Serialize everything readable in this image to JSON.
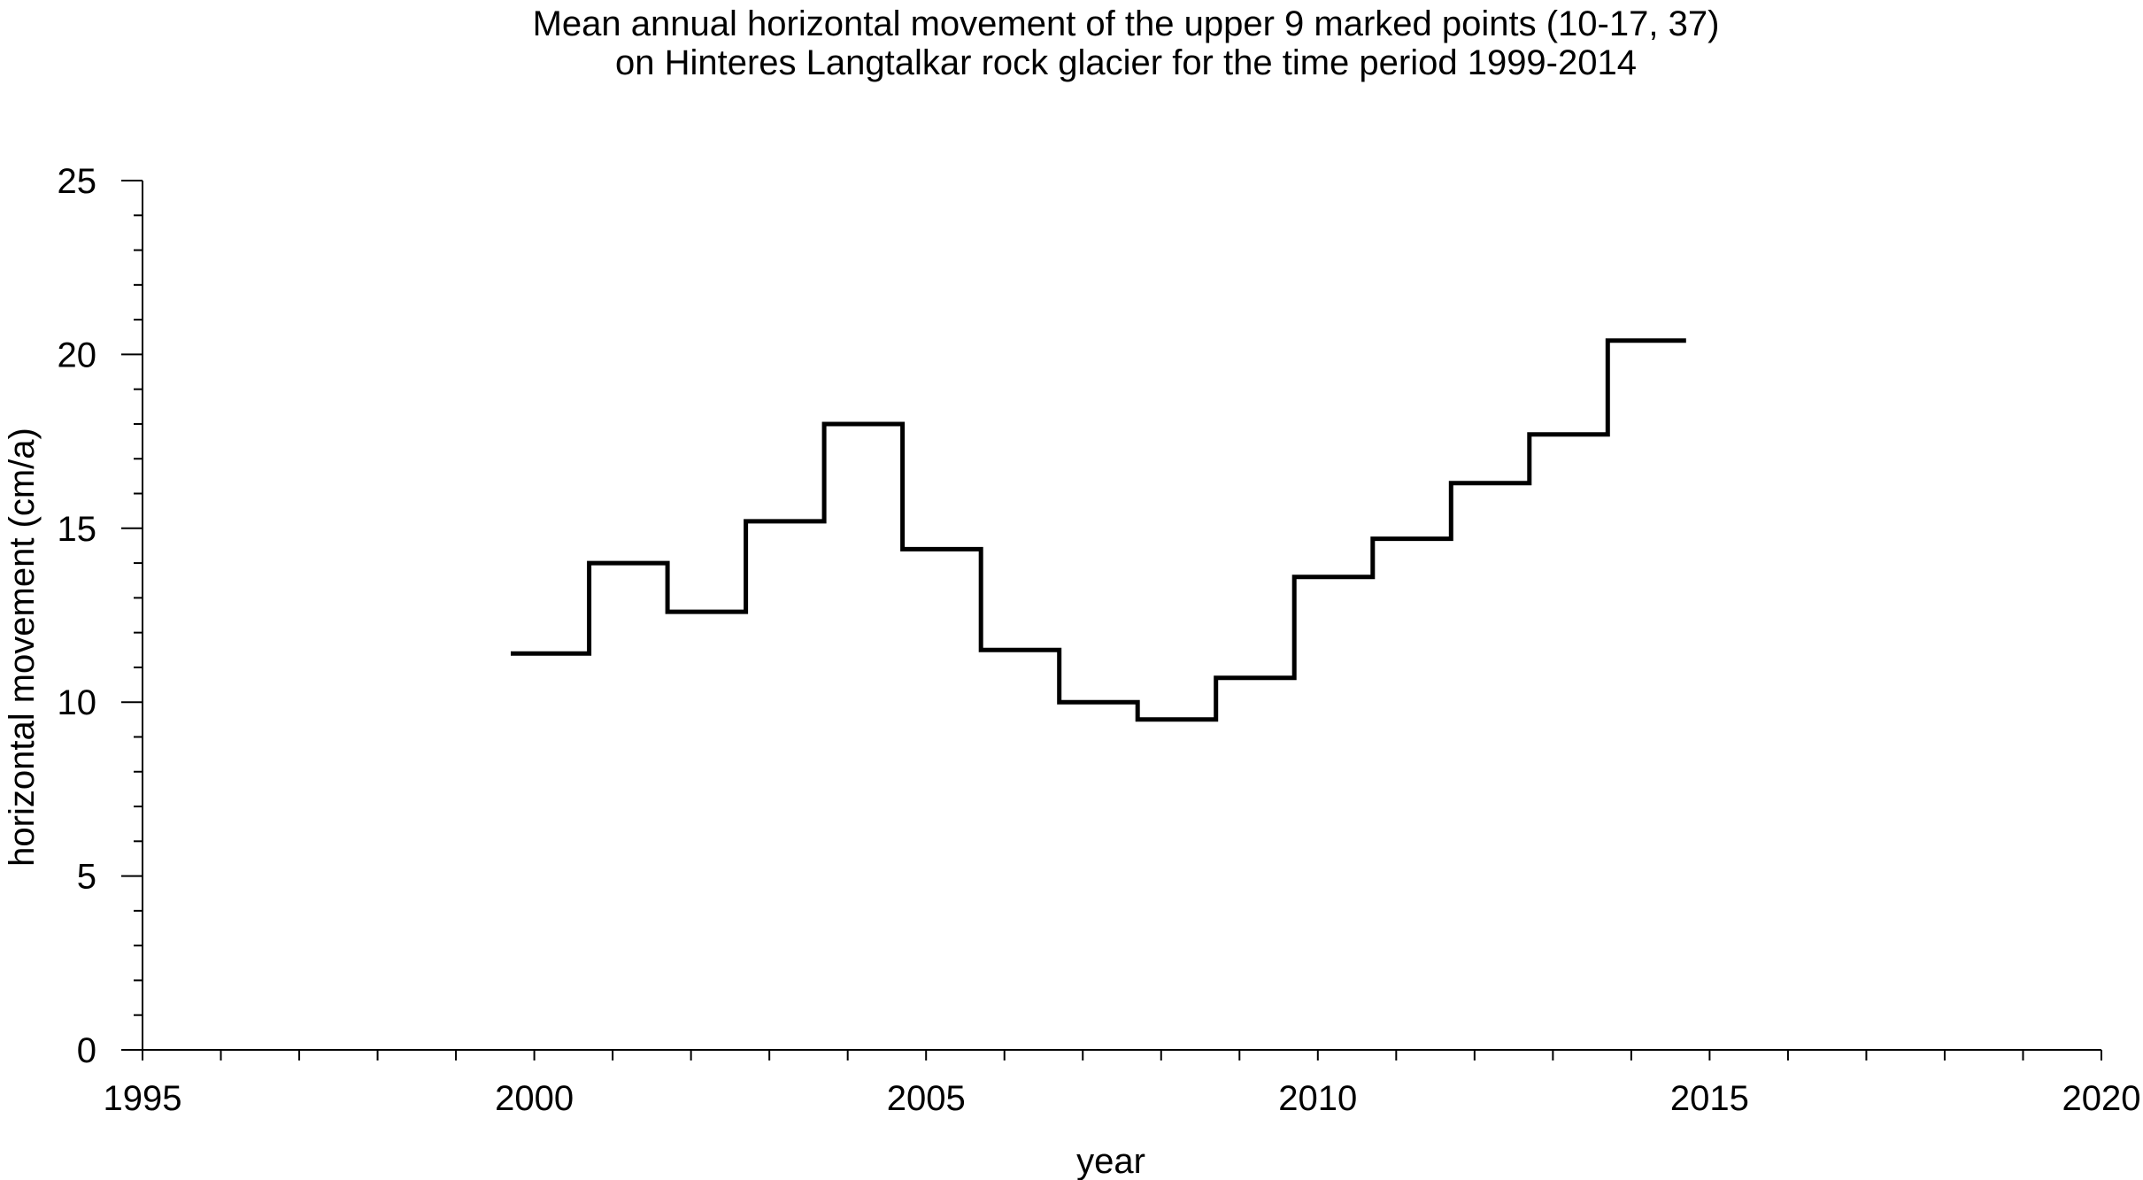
{
  "chart_data": {
    "type": "line",
    "step": "post",
    "title": [
      "Mean annual horizontal movement of the upper 9 marked points (10-17, 37)",
      "on Hinteres Langtalkar rock glacier for the time period 1999-2014"
    ],
    "xlabel": "year",
    "ylabel": "horizontal movement (cm/a)",
    "xlim": [
      1995,
      2020
    ],
    "ylim": [
      0,
      25
    ],
    "xticks": [
      1995,
      2000,
      2005,
      2010,
      2015,
      2020
    ],
    "xtick_labels": [
      "1995",
      "2000",
      "2005",
      "2010",
      "2015",
      "2020"
    ],
    "yticks": [
      0,
      5,
      10,
      15,
      20,
      25
    ],
    "ytick_labels": [
      "0",
      "5",
      "10",
      "15",
      "20",
      "25"
    ],
    "x_minor_step": 1,
    "y_minor_step": 1,
    "grid": false,
    "legend": "none",
    "series": [
      {
        "color": "#000000",
        "x": [
          1999.7,
          2000.7,
          2001.7,
          2002.7,
          2003.7,
          2004.7,
          2005.7,
          2006.7,
          2007.7,
          2008.7,
          2009.7,
          2010.7,
          2011.7,
          2012.7,
          2013.7,
          2014.7
        ],
        "values": [
          11.4,
          14.0,
          12.6,
          15.2,
          18.0,
          14.4,
          11.5,
          10.0,
          9.5,
          10.7,
          13.6,
          14.7,
          16.3,
          17.7,
          20.4,
          20.4
        ]
      }
    ]
  }
}
